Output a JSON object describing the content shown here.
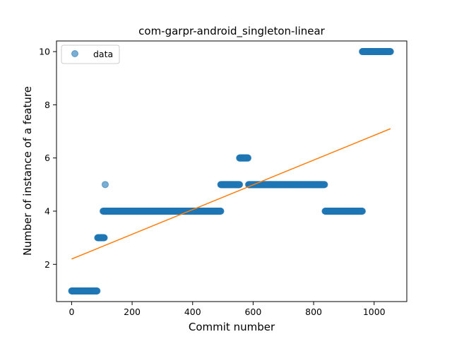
{
  "chart_data": {
    "type": "scatter",
    "title": "com-garpr-android_singleton-linear",
    "xlabel": "Commit number",
    "ylabel": "Number of instance of a feature",
    "xlim": [
      -50,
      1108
    ],
    "ylim": [
      0.6,
      10.4
    ],
    "xticks": [
      0,
      200,
      400,
      600,
      800,
      1000
    ],
    "yticks": [
      2,
      4,
      6,
      8,
      10
    ],
    "legend": {
      "placement": "top-left",
      "entries": [
        "data"
      ]
    },
    "colors": {
      "points": "#1f77b4",
      "fit_line": "#ff7f0e"
    },
    "series": [
      {
        "name": "data",
        "type": "scatter",
        "segments": [
          {
            "x_start": 0,
            "x_end": 84,
            "y": 1
          },
          {
            "x_start": 86,
            "x_end": 108,
            "y": 3
          },
          {
            "x_start": 111,
            "x_end": 111,
            "y": 5
          },
          {
            "x_start": 104,
            "x_end": 493,
            "y": 4
          },
          {
            "x_start": 493,
            "x_end": 555,
            "y": 5
          },
          {
            "x_start": 555,
            "x_end": 583,
            "y": 6
          },
          {
            "x_start": 585,
            "x_end": 836,
            "y": 5
          },
          {
            "x_start": 838,
            "x_end": 961,
            "y": 4
          },
          {
            "x_start": 961,
            "x_end": 1054,
            "y": 10
          }
        ]
      },
      {
        "type": "line",
        "x": [
          0,
          1054
        ],
        "y": [
          2.2,
          7.1
        ]
      }
    ]
  }
}
